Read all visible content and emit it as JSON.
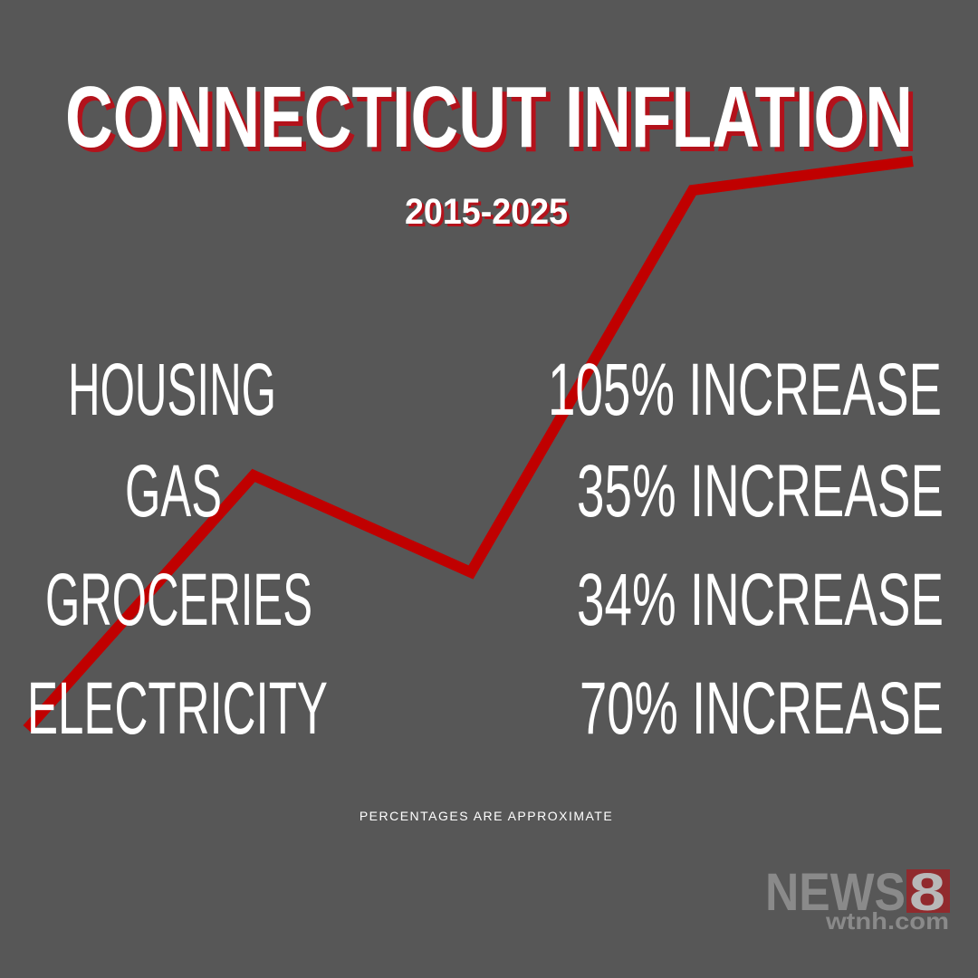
{
  "header": {
    "title": "CONNECTICUT INFLATION",
    "subtitle": "2015-2025"
  },
  "items": [
    {
      "label": "HOUSING",
      "change": "105% INCREASE"
    },
    {
      "label": "GAS",
      "change": "35% INCREASE"
    },
    {
      "label": "GROCERIES",
      "change": "34% INCREASE"
    },
    {
      "label": "ELECTRICITY",
      "change": "70% INCREASE"
    }
  ],
  "footnote": "PERCENTAGES ARE APPROXIMATE",
  "logo": {
    "text": "NEWS",
    "number": "8",
    "url": "wtnh.com"
  }
}
